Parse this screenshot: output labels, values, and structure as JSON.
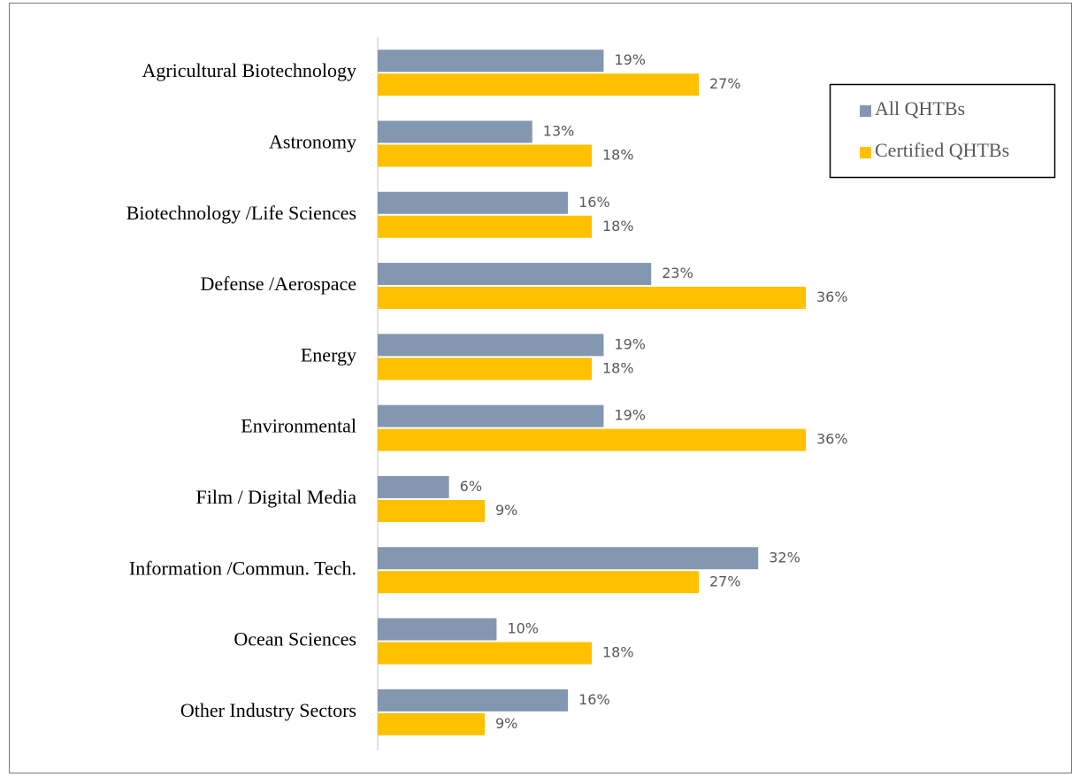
{
  "chart_data": {
    "type": "bar",
    "orientation": "horizontal",
    "categories": [
      "Agricultural Biotechnology",
      "Astronomy",
      "Biotechnology /Life Sciences",
      "Defense /Aerospace",
      "Energy",
      "Environmental",
      "Film / Digital Media",
      "Information /Commun. Tech.",
      "Ocean Sciences",
      "Other Industry Sectors"
    ],
    "series": [
      {
        "name": "All QHTBs",
        "color": "#8497b0",
        "values": [
          19,
          13,
          16,
          23,
          19,
          19,
          6,
          32,
          10,
          16
        ],
        "value_labels": [
          "19%",
          "13%",
          "16%",
          "23%",
          "19%",
          "19%",
          "6%",
          "32%",
          "10%",
          "16%"
        ]
      },
      {
        "name": "Certified QHTBs",
        "color": "#ffc000",
        "values": [
          27,
          18,
          18,
          36,
          18,
          36,
          9,
          27,
          18,
          9
        ],
        "value_labels": [
          "27%",
          "18%",
          "18%",
          "36%",
          "18%",
          "36%",
          "9%",
          "27%",
          "18%",
          "9%"
        ]
      }
    ],
    "legend": "upper right"
  }
}
